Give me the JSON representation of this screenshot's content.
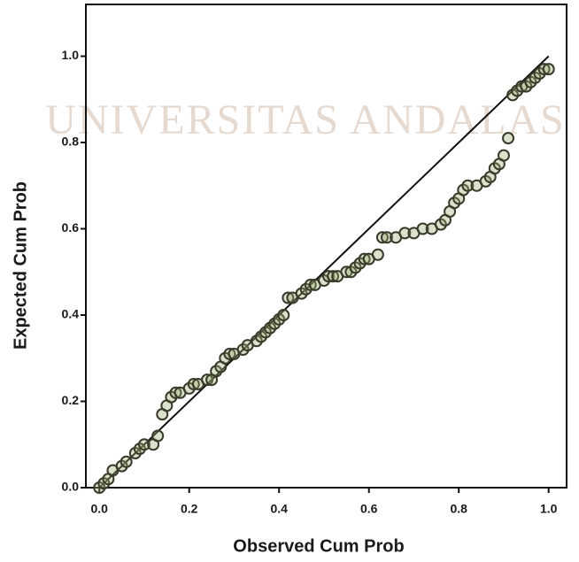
{
  "chart_data": {
    "type": "scatter",
    "watermark": "UNIVERSITAS ANDALAS",
    "x_label": "Observed Cum Prob",
    "y_label": "Expected Cum Prob",
    "xlim": [
      -0.03,
      1.04
    ],
    "ylim": [
      0,
      1.12
    ],
    "xticks": [
      {
        "value": 0,
        "label": "0.0"
      },
      {
        "value": 0.2,
        "label": "0.2"
      },
      {
        "value": 0.4,
        "label": "0.4"
      },
      {
        "value": 0.6,
        "label": "0.6"
      },
      {
        "value": 0.8,
        "label": "0.8"
      },
      {
        "value": 1,
        "label": "1.0"
      }
    ],
    "yticks": [
      {
        "value": 0,
        "label": "0.0"
      },
      {
        "value": 0.2,
        "label": "0.2"
      },
      {
        "value": 0.4,
        "label": "0.4"
      },
      {
        "value": 0.6,
        "label": "0.6"
      },
      {
        "value": 0.8,
        "label": "0.8"
      },
      {
        "value": 1,
        "label": "1.0"
      }
    ],
    "marker_color": "#3a3a2a",
    "reference_line": {
      "x": [
        0,
        1
      ],
      "y": [
        0,
        1
      ]
    },
    "x": [
      0.0,
      0.01,
      0.02,
      0.03,
      0.05,
      0.06,
      0.08,
      0.09,
      0.1,
      0.12,
      0.13,
      0.14,
      0.15,
      0.16,
      0.17,
      0.18,
      0.2,
      0.21,
      0.22,
      0.24,
      0.25,
      0.26,
      0.27,
      0.28,
      0.29,
      0.3,
      0.32,
      0.33,
      0.35,
      0.36,
      0.37,
      0.38,
      0.39,
      0.4,
      0.41,
      0.42,
      0.43,
      0.45,
      0.46,
      0.47,
      0.48,
      0.5,
      0.51,
      0.52,
      0.53,
      0.55,
      0.56,
      0.57,
      0.58,
      0.59,
      0.6,
      0.62,
      0.63,
      0.64,
      0.66,
      0.68,
      0.7,
      0.72,
      0.74,
      0.76,
      0.77,
      0.78,
      0.79,
      0.8,
      0.81,
      0.82,
      0.84,
      0.86,
      0.87,
      0.88,
      0.89,
      0.9,
      0.91,
      0.92,
      0.93,
      0.94,
      0.95,
      0.96,
      0.97,
      0.98,
      0.99,
      1.0
    ],
    "y": [
      0.0,
      0.01,
      0.02,
      0.04,
      0.05,
      0.06,
      0.08,
      0.09,
      0.1,
      0.1,
      0.12,
      0.17,
      0.19,
      0.21,
      0.22,
      0.22,
      0.23,
      0.24,
      0.24,
      0.25,
      0.25,
      0.27,
      0.28,
      0.3,
      0.31,
      0.31,
      0.32,
      0.33,
      0.34,
      0.35,
      0.36,
      0.37,
      0.38,
      0.39,
      0.4,
      0.44,
      0.44,
      0.45,
      0.46,
      0.47,
      0.47,
      0.48,
      0.49,
      0.49,
      0.49,
      0.5,
      0.5,
      0.51,
      0.52,
      0.53,
      0.53,
      0.54,
      0.58,
      0.58,
      0.58,
      0.59,
      0.59,
      0.6,
      0.6,
      0.61,
      0.62,
      0.64,
      0.66,
      0.67,
      0.69,
      0.7,
      0.7,
      0.71,
      0.72,
      0.74,
      0.75,
      0.77,
      0.81,
      0.91,
      0.92,
      0.93,
      0.93,
      0.94,
      0.95,
      0.96,
      0.97,
      0.97
    ]
  }
}
